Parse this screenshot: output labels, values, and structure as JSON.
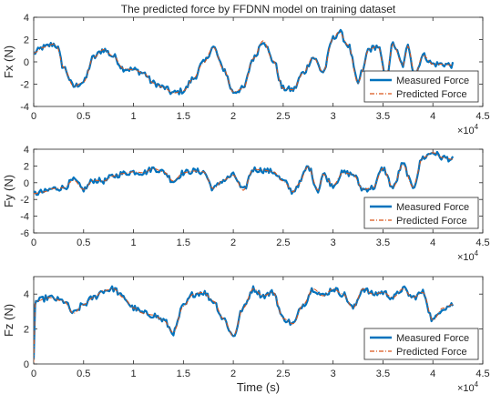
{
  "chart_data": [
    {
      "type": "line",
      "title": "The predicted force by FFDNN model on training dataset",
      "xlabel": "",
      "ylabel": "Fx (N)",
      "xlim": [
        0,
        45000
      ],
      "ylim": [
        -4,
        4
      ],
      "x_ticks": [
        0,
        5000,
        10000,
        15000,
        20000,
        25000,
        30000,
        35000,
        40000,
        45000
      ],
      "x_tick_labels": [
        "0",
        "0.5",
        "1",
        "1.5",
        "2",
        "2.5",
        "3",
        "3.5",
        "4",
        "4.5"
      ],
      "x_exponent": "×10^4",
      "y_ticks": [
        -4,
        -2,
        0,
        2,
        4
      ],
      "y_tick_labels": [
        "-4",
        "-2",
        "0",
        "2",
        "4"
      ],
      "legend": "bottom-right",
      "series": [
        {
          "name": "Measured Force",
          "color": "#0072BD",
          "style": "solid"
        },
        {
          "name": "Predicted Force",
          "color": "#D95319",
          "style": "dashdot"
        }
      ],
      "x": [
        0,
        1000,
        2000,
        2300,
        3000,
        4000,
        5000,
        6000,
        7000,
        8000,
        9000,
        10000,
        11000,
        12000,
        13000,
        14000,
        15000,
        16000,
        17000,
        18000,
        19000,
        20000,
        21000,
        22000,
        23000,
        24000,
        25000,
        26000,
        27000,
        28000,
        29000,
        30000,
        30600,
        31500,
        32500,
        33000,
        33500,
        34500,
        35300,
        36000,
        37000,
        37500,
        38200,
        39000,
        40000,
        41000,
        42000
      ],
      "values": [
        0.8,
        1.3,
        1.6,
        1.4,
        -0.5,
        -2.2,
        -1.8,
        0.4,
        1.1,
        0.5,
        -0.6,
        -0.7,
        -1.0,
        -1.9,
        -2.3,
        -2.8,
        -2.6,
        -1.5,
        -0.1,
        1.3,
        -0.6,
        -2.7,
        -2.4,
        0.3,
        1.9,
        0.1,
        -2.4,
        -2.5,
        -1.0,
        0.4,
        -0.9,
        2.1,
        2.7,
        1.5,
        -1.9,
        -0.7,
        1.1,
        1.4,
        -1.5,
        1.6,
        -0.3,
        1.4,
        -1.2,
        0.6,
        -0.2,
        -0.2,
        -0.3
      ]
    },
    {
      "type": "line",
      "title": "",
      "xlabel": "",
      "ylabel": "Fy (N)",
      "xlim": [
        0,
        45000
      ],
      "ylim": [
        -6,
        4
      ],
      "x_ticks": [
        0,
        5000,
        10000,
        15000,
        20000,
        25000,
        30000,
        35000,
        40000,
        45000
      ],
      "x_tick_labels": [
        "0",
        "0.5",
        "1",
        "1.5",
        "2",
        "2.5",
        "3",
        "3.5",
        "4",
        "4.5"
      ],
      "x_exponent": "×10^4",
      "y_ticks": [
        -6,
        -4,
        -2,
        0,
        2,
        4
      ],
      "y_tick_labels": [
        "-6",
        "-4",
        "-2",
        "0",
        "2",
        "4"
      ],
      "legend": "bottom-right",
      "series": [
        {
          "name": "Measured Force",
          "color": "#0072BD",
          "style": "solid"
        },
        {
          "name": "Predicted Force",
          "color": "#D95319",
          "style": "dashdot"
        }
      ],
      "x": [
        0,
        1000,
        2000,
        3000,
        4000,
        5000,
        6000,
        7000,
        8000,
        9000,
        10000,
        11000,
        12000,
        13000,
        14000,
        15000,
        16000,
        17000,
        18000,
        19000,
        20000,
        21000,
        22000,
        23000,
        24000,
        25000,
        26000,
        26500,
        27500,
        28500,
        29000,
        30000,
        31000,
        32000,
        33000,
        34000,
        35000,
        36000,
        37000,
        38000,
        39000,
        40000,
        41000,
        42000
      ],
      "values": [
        -1.3,
        -1.1,
        -0.7,
        -0.6,
        0.3,
        -0.8,
        0.3,
        0.2,
        0.8,
        1.1,
        1.3,
        1.2,
        1.7,
        1.3,
        0.2,
        1.2,
        1.4,
        1.3,
        -0.7,
        0.3,
        0.9,
        -0.9,
        1.6,
        1.5,
        1.3,
        0.2,
        -1.1,
        -0.2,
        1.9,
        -0.9,
        1.0,
        -0.3,
        1.2,
        1.0,
        -0.8,
        -0.6,
        1.7,
        -0.6,
        2.2,
        -0.5,
        3.0,
        3.6,
        3.0,
        2.8
      ]
    },
    {
      "type": "line",
      "title": "",
      "xlabel": "Time (s)",
      "ylabel": "Fz (N)",
      "xlim": [
        0,
        45000
      ],
      "ylim": [
        0,
        5
      ],
      "x_ticks": [
        0,
        5000,
        10000,
        15000,
        20000,
        25000,
        30000,
        35000,
        40000,
        45000
      ],
      "x_tick_labels": [
        "0",
        "0.5",
        "1",
        "1.5",
        "2",
        "2.5",
        "3",
        "3.5",
        "4",
        "4.5"
      ],
      "x_exponent": "×10^4",
      "y_ticks": [
        0,
        2,
        4
      ],
      "y_tick_labels": [
        "0",
        "2",
        "4"
      ],
      "legend": "bottom-right",
      "series": [
        {
          "name": "Measured Force",
          "color": "#0072BD",
          "style": "solid"
        },
        {
          "name": "Predicted Force",
          "color": "#D95319",
          "style": "dashdot"
        }
      ],
      "x": [
        0,
        150,
        300,
        1500,
        3000,
        4000,
        5000,
        6000,
        7000,
        8000,
        9000,
        10000,
        11000,
        12000,
        13000,
        14000,
        15000,
        16000,
        17000,
        18000,
        19000,
        20000,
        21000,
        22000,
        23000,
        24000,
        25000,
        26000,
        27000,
        28000,
        29000,
        30000,
        31000,
        32000,
        33000,
        34000,
        35000,
        36000,
        37000,
        38000,
        39000,
        40000,
        41000,
        42000
      ],
      "values": [
        0.1,
        3.5,
        3.6,
        3.8,
        3.6,
        2.9,
        3.4,
        3.8,
        4.2,
        4.3,
        3.8,
        3.2,
        2.9,
        2.8,
        2.5,
        1.8,
        3.3,
        4.0,
        4.1,
        3.6,
        2.6,
        1.6,
        3.2,
        4.3,
        3.9,
        4.1,
        2.6,
        2.3,
        3.4,
        4.3,
        3.9,
        4.3,
        4.0,
        3.2,
        4.3,
        4.0,
        4.1,
        3.8,
        4.3,
        3.8,
        4.1,
        2.5,
        3.2,
        3.4
      ]
    }
  ]
}
